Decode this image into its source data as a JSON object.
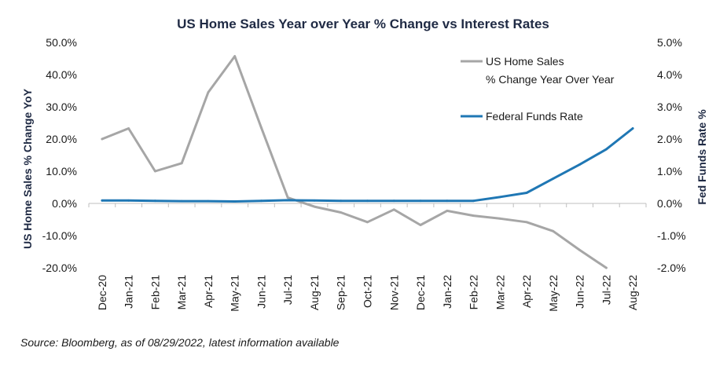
{
  "chart_data": {
    "type": "line",
    "title": "US Home Sales Year over Year % Change vs Interest Rates",
    "ylabel_left": "US Home Sales % Change YoY",
    "ylabel_right": "Fed Funds Rate %",
    "xlabel": "",
    "categories": [
      "Dec-20",
      "Jan-21",
      "Feb-21",
      "Mar-21",
      "Apr-21",
      "May-21",
      "Jun-21",
      "Jul-21",
      "Aug-21",
      "Sep-21",
      "Oct-21",
      "Nov-21",
      "Dec-21",
      "Jan-22",
      "Feb-22",
      "Mar-22",
      "Apr-22",
      "May-22",
      "Jun-22",
      "Jul-22",
      "Aug-22"
    ],
    "ylim_left": [
      -20,
      50
    ],
    "ylim_right": [
      -2,
      5
    ],
    "yticks_left": [
      "50.0%",
      "40.0%",
      "30.0%",
      "20.0%",
      "10.0%",
      "0.0%",
      "-10.0%",
      "-20.0%"
    ],
    "yticks_right": [
      "5.0%",
      "4.0%",
      "3.0%",
      "2.0%",
      "1.0%",
      "0.0%",
      "-1.0%",
      "-2.0%"
    ],
    "grid": false,
    "legend_position": "top-right",
    "series": [
      {
        "name_line1": "US Home Sales",
        "name_line2": "% Change Year Over Year",
        "axis": "left",
        "color": "#a6a6a6",
        "values": [
          20.0,
          23.3,
          10.0,
          12.5,
          34.5,
          45.7,
          23.5,
          1.8,
          -1.0,
          -2.8,
          -5.8,
          -1.9,
          -6.7,
          -2.3,
          -3.8,
          -4.7,
          -5.8,
          -8.6,
          -14.5,
          -20.0,
          null
        ]
      },
      {
        "name": "Federal Funds Rate",
        "axis": "right",
        "color": "#1f77b4",
        "values": [
          0.09,
          0.09,
          0.08,
          0.07,
          0.07,
          0.06,
          0.08,
          0.1,
          0.09,
          0.08,
          0.08,
          0.08,
          0.08,
          0.08,
          0.08,
          0.2,
          0.33,
          0.77,
          1.21,
          1.68,
          2.33
        ]
      }
    ],
    "source": "Source: Bloomberg, as of 08/29/2022, latest information available"
  }
}
